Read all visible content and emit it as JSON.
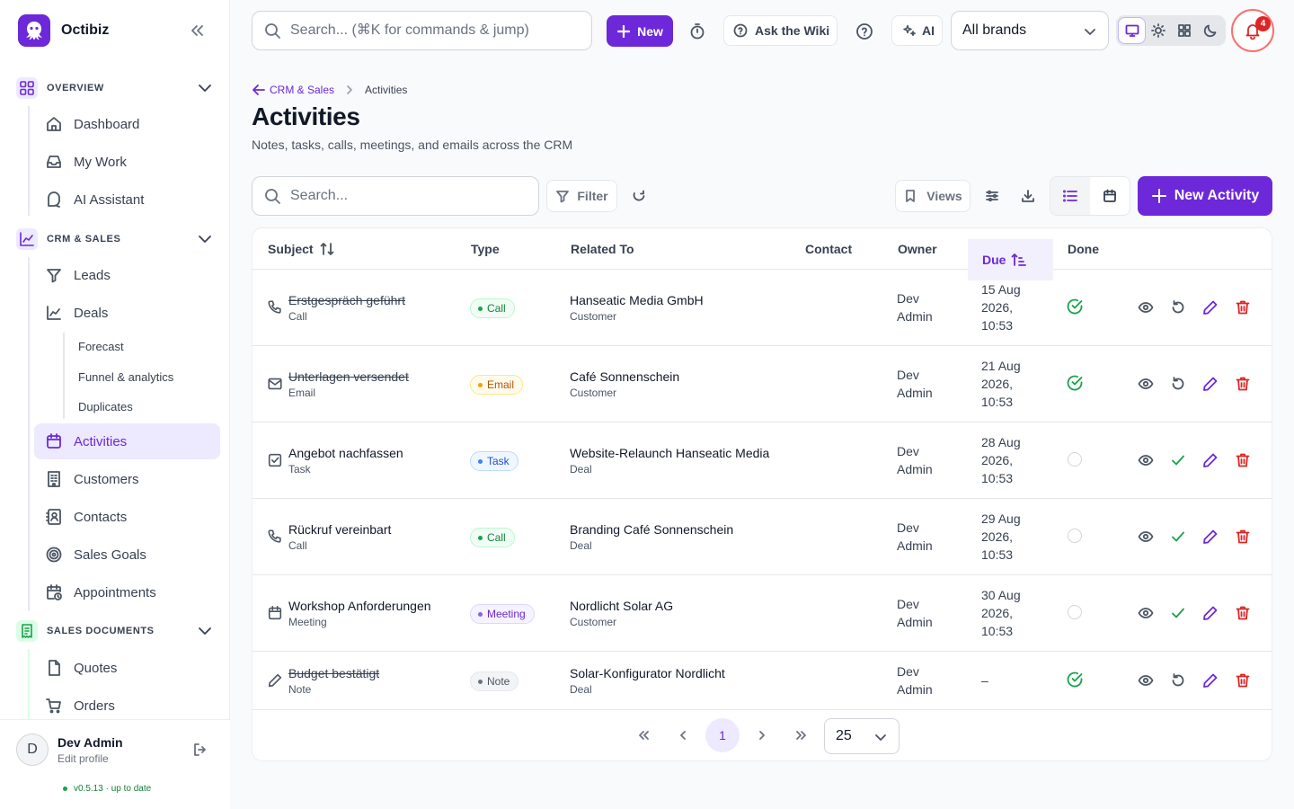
{
  "app": {
    "name": "Octibiz"
  },
  "topbar": {
    "search_placeholder": "Search... (⌘K for commands & jump)",
    "new_label": "New",
    "wiki_label": "Ask the Wiki",
    "ai_label": "AI",
    "brand_select": "All brands",
    "notification_count": "4"
  },
  "sidebar": {
    "sections": {
      "overview": "OVERVIEW",
      "crm": "CRM & SALES",
      "docs": "SALES DOCUMENTS"
    },
    "items": {
      "dashboard": "Dashboard",
      "mywork": "My Work",
      "ai": "AI Assistant",
      "leads": "Leads",
      "deals": "Deals",
      "forecast": "Forecast",
      "funnel": "Funnel & analytics",
      "duplicates": "Duplicates",
      "activities": "Activities",
      "customers": "Customers",
      "contacts": "Contacts",
      "goals": "Sales Goals",
      "appointments": "Appointments",
      "quotes": "Quotes",
      "orders": "Orders"
    },
    "user": {
      "initial": "D",
      "name": "Dev Admin",
      "sub": "Edit profile",
      "version": "v0.5.13 · up to date"
    }
  },
  "page": {
    "breadcrumb_parent": "CRM & Sales",
    "breadcrumb_current": "Activities",
    "title": "Activities",
    "subtitle": "Notes, tasks, calls, meetings, and emails across the CRM"
  },
  "toolbar": {
    "search_placeholder": "Search...",
    "filter_label": "Filter",
    "views_label": "Views",
    "new_activity_label": "New Activity"
  },
  "table": {
    "columns": {
      "subject": "Subject",
      "type": "Type",
      "related": "Related To",
      "contact": "Contact",
      "owner": "Owner",
      "due": "Due",
      "done": "Done"
    },
    "rows": [
      {
        "subject": "Erstgespräch geführt",
        "subject_sub": "Call",
        "type": "Call",
        "related": "Hanseatic Media GmbH",
        "related_sub": "Customer",
        "contact": "",
        "owner": "Dev Admin",
        "due": "15 Aug 2026, 10:53",
        "done": true
      },
      {
        "subject": "Unterlagen versendet",
        "subject_sub": "Email",
        "type": "Email",
        "related": "Café Sonnenschein",
        "related_sub": "Customer",
        "contact": "",
        "owner": "Dev Admin",
        "due": "21 Aug 2026, 10:53",
        "done": true
      },
      {
        "subject": "Angebot nachfassen",
        "subject_sub": "Task",
        "type": "Task",
        "related": "Website-Relaunch Hanseatic Media",
        "related_sub": "Deal",
        "contact": "",
        "owner": "Dev Admin",
        "due": "28 Aug 2026, 10:53",
        "done": false
      },
      {
        "subject": "Rückruf vereinbart",
        "subject_sub": "Call",
        "type": "Call",
        "related": "Branding Café Sonnenschein",
        "related_sub": "Deal",
        "contact": "",
        "owner": "Dev Admin",
        "due": "29 Aug 2026, 10:53",
        "done": false
      },
      {
        "subject": "Workshop Anforderungen",
        "subject_sub": "Meeting",
        "type": "Meeting",
        "related": "Nordlicht Solar AG",
        "related_sub": "Customer",
        "contact": "",
        "owner": "Dev Admin",
        "due": "30 Aug 2026, 10:53",
        "done": false
      },
      {
        "subject": "Budget bestätigt",
        "subject_sub": "Note",
        "type": "Note",
        "related": "Solar-Konfigurator Nordlicht",
        "related_sub": "Deal",
        "contact": "",
        "owner": "Dev Admin",
        "due": "–",
        "done": true
      }
    ]
  },
  "pagination": {
    "current_page": "1",
    "page_size": "25"
  },
  "colors": {
    "accent": "#6d28d9",
    "call": "#16a34a",
    "email": "#f59e0b",
    "task": "#3b82f6",
    "meeting": "#8b5cf6",
    "note": "#6b7280",
    "delete": "#dc2626"
  }
}
